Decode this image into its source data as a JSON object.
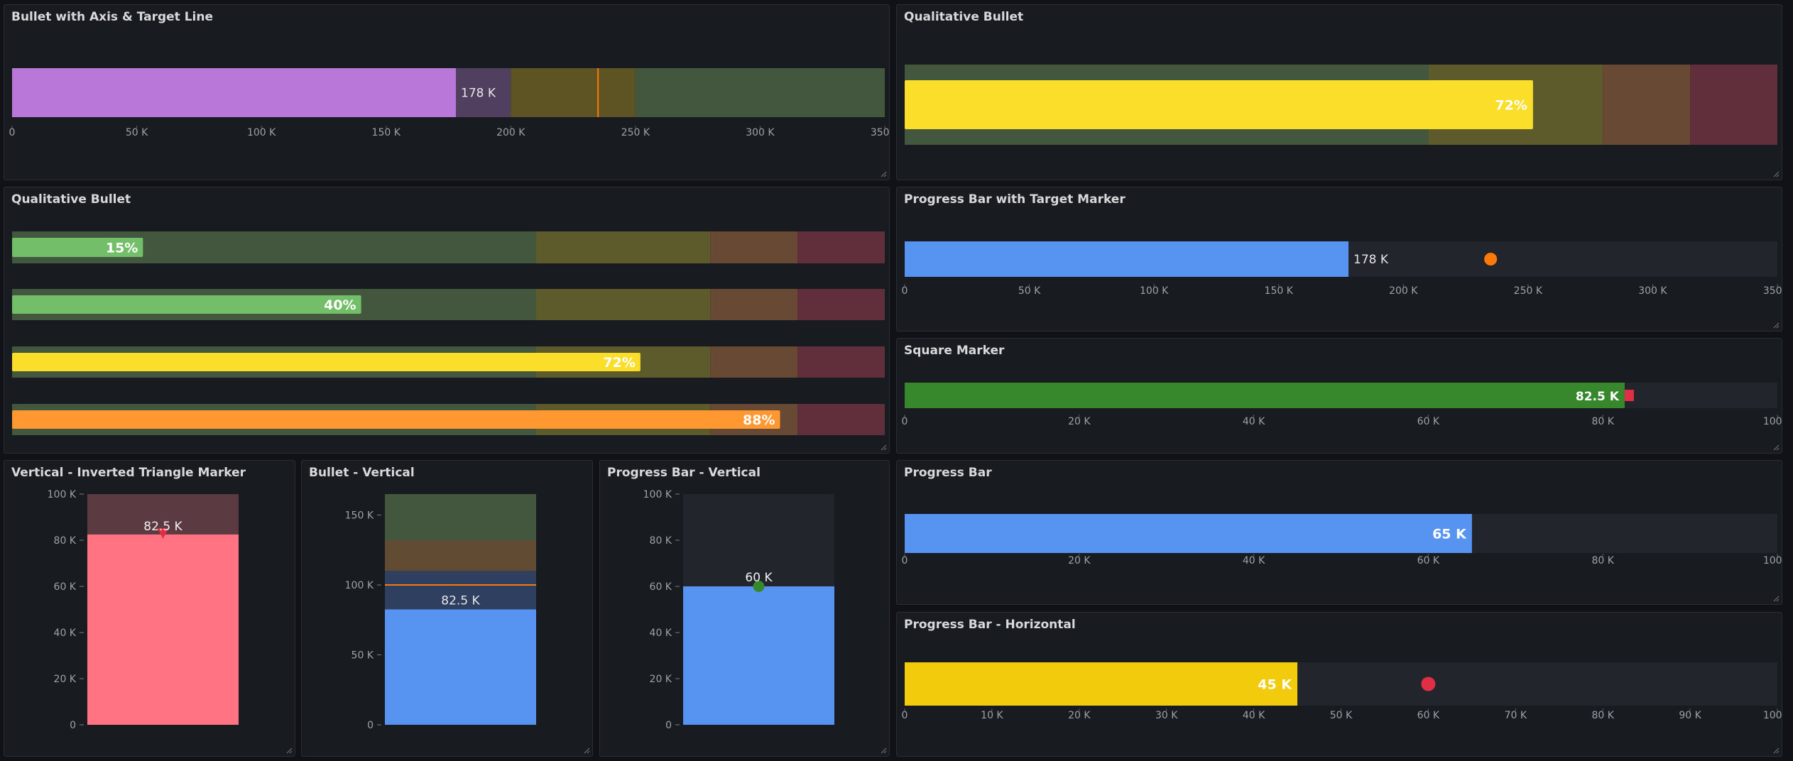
{
  "panels": {
    "p1": {
      "title": "Bullet with Axis & Target Line"
    },
    "p2": {
      "title": "Qualitative Bullet"
    },
    "p3": {
      "title": "Qualitative Bullet"
    },
    "p4": {
      "title": "Progress Bar with Target Marker"
    },
    "p5": {
      "title": "Square Marker"
    },
    "p6": {
      "title": "Vertical - Inverted Triangle Marker"
    },
    "p7": {
      "title": "Bullet - Vertical"
    },
    "p8": {
      "title": "Progress Bar - Vertical"
    },
    "p9": {
      "title": "Progress Bar"
    },
    "p10": {
      "title": "Progress Bar - Horizontal"
    }
  },
  "chart_data": [
    {
      "id": "p1",
      "type": "bar",
      "orientation": "horizontal",
      "value": 178,
      "value_label": "178 K",
      "target": 235,
      "ranges": [
        200,
        250,
        350
      ],
      "range_colors": [
        "#503f5e",
        "#5d5323",
        "#43573f"
      ],
      "bar_color": "#b877d9",
      "target_color": "#ff780a",
      "ylim": [
        0,
        350
      ],
      "ticks": [
        0,
        50,
        100,
        150,
        200,
        250,
        300,
        350
      ],
      "tick_labels": [
        "0",
        "50 K",
        "100 K",
        "150 K",
        "200 K",
        "250 K",
        "300 K",
        "350 K"
      ]
    },
    {
      "id": "p2",
      "type": "bar",
      "orientation": "horizontal",
      "value": 72,
      "value_label": "72%",
      "ranges": [
        60,
        80,
        90,
        100
      ],
      "range_colors": [
        "#43573f",
        "#5d5a2c",
        "#674934",
        "#602f3b"
      ],
      "bar_color": "#fade2a",
      "ylim": [
        0,
        100
      ]
    },
    {
      "id": "p3",
      "type": "bar",
      "orientation": "horizontal",
      "ylim": [
        0,
        100
      ],
      "ranges": [
        60,
        80,
        90,
        100
      ],
      "range_colors": [
        "#43573f",
        "#5d5a2c",
        "#674934",
        "#602f3b"
      ],
      "series": [
        {
          "value": 15,
          "value_label": "15%",
          "color": "#73bf69"
        },
        {
          "value": 40,
          "value_label": "40%",
          "color": "#73bf69"
        },
        {
          "value": 72,
          "value_label": "72%",
          "color": "#fade2a"
        },
        {
          "value": 88,
          "value_label": "88%",
          "color": "#ff9830"
        }
      ]
    },
    {
      "id": "p4",
      "type": "bar",
      "orientation": "horizontal",
      "value": 178,
      "value_label": "178 K",
      "target": 235,
      "bar_color": "#5794f2",
      "bg_color": "#22252b",
      "marker": "circle",
      "marker_color": "#ff780a",
      "ylim": [
        0,
        350
      ],
      "ticks": [
        0,
        50,
        100,
        150,
        200,
        250,
        300,
        350
      ],
      "tick_labels": [
        "0",
        "50 K",
        "100 K",
        "150 K",
        "200 K",
        "250 K",
        "300 K",
        "350 K"
      ]
    },
    {
      "id": "p5",
      "type": "bar",
      "orientation": "horizontal",
      "value": 82.5,
      "value_label": "82.5 K",
      "target": 82.5,
      "bar_color": "#37872d",
      "bg_color": "#22252b",
      "marker": "square",
      "marker_color": "#e02f44",
      "ylim": [
        0,
        100
      ],
      "ticks": [
        0,
        20,
        40,
        60,
        80,
        100
      ],
      "tick_labels": [
        "0",
        "20 K",
        "40 K",
        "60 K",
        "80 K",
        "100 K"
      ]
    },
    {
      "id": "p6",
      "type": "bar",
      "orientation": "vertical",
      "value": 82.5,
      "value_label": "82.5 K",
      "target": 82.5,
      "bar_color": "#ff7383",
      "bg_color": "#5c3a42",
      "marker": "triangle-down",
      "marker_color": "#e02f44",
      "ylim": [
        0,
        100
      ],
      "ticks": [
        0,
        20,
        40,
        60,
        80,
        100
      ],
      "tick_labels": [
        "0",
        "20 K",
        "40 K",
        "60 K",
        "80 K",
        "100 K"
      ]
    },
    {
      "id": "p7",
      "type": "bar",
      "orientation": "vertical",
      "value": 82.5,
      "value_label": "82.5 K",
      "target": 100,
      "ranges": [
        110,
        132,
        165
      ],
      "range_colors": [
        "#2f3f5f",
        "#614b33",
        "#43573f"
      ],
      "bar_color": "#5794f2",
      "target_color": "#ff780a",
      "ylim": [
        0,
        165
      ],
      "ticks": [
        0,
        50,
        100,
        150
      ],
      "tick_labels": [
        "0",
        "50 K",
        "100 K",
        "150 K"
      ]
    },
    {
      "id": "p8",
      "type": "bar",
      "orientation": "vertical",
      "value": 60,
      "value_label": "60 K",
      "target": 60,
      "bar_color": "#5794f2",
      "bg_color": "#22252b",
      "marker": "circle",
      "marker_color": "#37872d",
      "ylim": [
        0,
        100
      ],
      "ticks": [
        0,
        20,
        40,
        60,
        80,
        100
      ],
      "tick_labels": [
        "0",
        "20 K",
        "40 K",
        "60 K",
        "80 K",
        "100 K"
      ]
    },
    {
      "id": "p9",
      "type": "bar",
      "orientation": "horizontal",
      "value": 65,
      "value_label": "65 K",
      "bar_color": "#5794f2",
      "bg_color": "#22252b",
      "ylim": [
        0,
        100
      ],
      "ticks": [
        0,
        20,
        40,
        60,
        80,
        100
      ],
      "tick_labels": [
        "0",
        "20 K",
        "40 K",
        "60 K",
        "80 K",
        "100 K"
      ]
    },
    {
      "id": "p10",
      "type": "bar",
      "orientation": "horizontal",
      "value": 45,
      "value_label": "45 K",
      "target": 60,
      "bar_color": "#f2cc0c",
      "bg_color": "#22252b",
      "marker": "circle",
      "marker_color": "#e02f44",
      "ylim": [
        0,
        100
      ],
      "ticks": [
        0,
        10,
        20,
        30,
        40,
        50,
        60,
        70,
        80,
        90,
        100
      ],
      "tick_labels": [
        "0",
        "10 K",
        "20 K",
        "30 K",
        "40 K",
        "50 K",
        "60 K",
        "70 K",
        "80 K",
        "90 K",
        "100 K"
      ]
    }
  ]
}
